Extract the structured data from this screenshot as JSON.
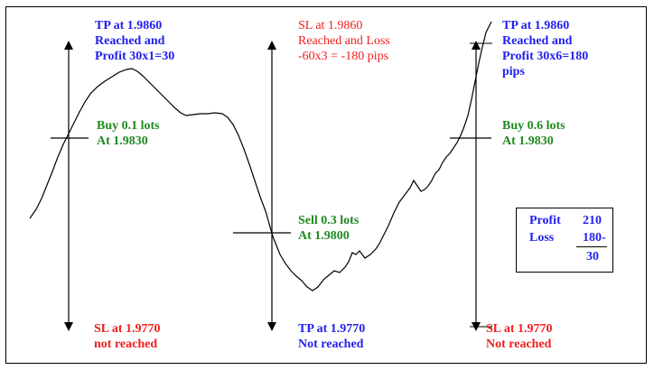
{
  "labels": {
    "left_top": [
      "TP at 1.9860",
      "Reached and",
      "Profit 30x1=30"
    ],
    "left_entry": [
      "Buy 0.1 lots",
      "At 1.9830"
    ],
    "left_bottom": [
      "SL at 1.9770",
      "not reached"
    ],
    "mid_top": [
      "SL at 1.9860",
      "Reached and Loss",
      "-60x3 = -180 pips"
    ],
    "mid_entry": [
      "Sell 0.3 lots",
      "At 1.9800"
    ],
    "mid_bottom": [
      "TP at 1.9770",
      "Not reached"
    ],
    "right_top": [
      "TP at 1.9860",
      "Reached and",
      "Profit 30x6=180",
      "pips"
    ],
    "right_entry": [
      "Buy 0.6 lots",
      "At 1.9830"
    ],
    "right_bottom": [
      "SL at 1.9770",
      "Not reached"
    ]
  },
  "summary": {
    "profit_label": "Profit",
    "profit_value": "210",
    "loss_label": "Loss",
    "loss_value": "180-",
    "net_value": "30"
  },
  "colors": {
    "tp": "#1f1ff0",
    "sl": "#f02020",
    "entry": "#1f8a1f",
    "line": "#000000"
  }
}
